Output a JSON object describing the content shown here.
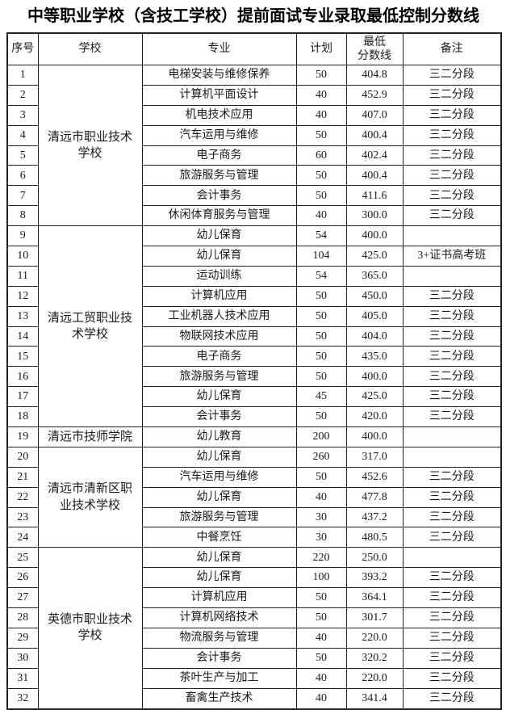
{
  "page": {
    "title": "中等职业学校（含技工学校）提前面试专业录取最低控制分数线"
  },
  "table": {
    "headers": {
      "no": "序号",
      "school": "学校",
      "major": "专业",
      "plan": "计划",
      "score": "最低\n分数线",
      "remark": "备注"
    },
    "groups": [
      {
        "school": "清远市职业技术学校",
        "rows": [
          {
            "no": "1",
            "major": "电梯安装与维修保养",
            "plan": "50",
            "score": "404.8",
            "remark": "三二分段"
          },
          {
            "no": "2",
            "major": "计算机平面设计",
            "plan": "40",
            "score": "452.9",
            "remark": "三二分段"
          },
          {
            "no": "3",
            "major": "机电技术应用",
            "plan": "40",
            "score": "407.0",
            "remark": "三二分段"
          },
          {
            "no": "4",
            "major": "汽车运用与维修",
            "plan": "50",
            "score": "400.4",
            "remark": "三二分段"
          },
          {
            "no": "5",
            "major": "电子商务",
            "plan": "60",
            "score": "402.4",
            "remark": "三二分段"
          },
          {
            "no": "6",
            "major": "旅游服务与管理",
            "plan": "50",
            "score": "400.4",
            "remark": "三二分段"
          },
          {
            "no": "7",
            "major": "会计事务",
            "plan": "50",
            "score": "411.6",
            "remark": "三二分段"
          },
          {
            "no": "8",
            "major": "休闲体育服务与管理",
            "plan": "40",
            "score": "300.0",
            "remark": "三二分段"
          }
        ]
      },
      {
        "school": "清远工贸职业技术学校",
        "rows": [
          {
            "no": "9",
            "major": "幼儿保育",
            "plan": "54",
            "score": "400.0",
            "remark": ""
          },
          {
            "no": "10",
            "major": "幼儿保育",
            "plan": "104",
            "score": "425.0",
            "remark": "3+证书高考班"
          },
          {
            "no": "11",
            "major": "运动训练",
            "plan": "54",
            "score": "365.0",
            "remark": ""
          },
          {
            "no": "12",
            "major": "计算机应用",
            "plan": "50",
            "score": "450.0",
            "remark": "三二分段"
          },
          {
            "no": "13",
            "major": "工业机器人技术应用",
            "plan": "50",
            "score": "405.0",
            "remark": "三二分段"
          },
          {
            "no": "14",
            "major": "物联网技术应用",
            "plan": "50",
            "score": "404.0",
            "remark": "三二分段"
          },
          {
            "no": "15",
            "major": "电子商务",
            "plan": "50",
            "score": "435.0",
            "remark": "三二分段"
          },
          {
            "no": "16",
            "major": "旅游服务与管理",
            "plan": "50",
            "score": "400.0",
            "remark": "三二分段"
          },
          {
            "no": "17",
            "major": "幼儿保育",
            "plan": "45",
            "score": "425.0",
            "remark": "三二分段"
          },
          {
            "no": "18",
            "major": "会计事务",
            "plan": "50",
            "score": "420.0",
            "remark": "三二分段"
          }
        ]
      },
      {
        "school": "清远市技师学院",
        "rows": [
          {
            "no": "19",
            "major": "幼儿教育",
            "plan": "200",
            "score": "400.0",
            "remark": ""
          }
        ]
      },
      {
        "school": "清远市清新区职业技术学校",
        "rows": [
          {
            "no": "20",
            "major": "幼儿保育",
            "plan": "260",
            "score": "317.0",
            "remark": ""
          },
          {
            "no": "21",
            "major": "汽车运用与维修",
            "plan": "50",
            "score": "452.6",
            "remark": "三二分段"
          },
          {
            "no": "22",
            "major": "幼儿保育",
            "plan": "40",
            "score": "477.8",
            "remark": "三二分段"
          },
          {
            "no": "23",
            "major": "旅游服务与管理",
            "plan": "30",
            "score": "437.2",
            "remark": "三二分段"
          },
          {
            "no": "24",
            "major": "中餐烹饪",
            "plan": "30",
            "score": "480.5",
            "remark": "三二分段"
          }
        ]
      },
      {
        "school": "英德市职业技术学校",
        "rows": [
          {
            "no": "25",
            "major": "幼儿保育",
            "plan": "220",
            "score": "250.0",
            "remark": ""
          },
          {
            "no": "26",
            "major": "幼儿保育",
            "plan": "100",
            "score": "393.2",
            "remark": "三二分段"
          },
          {
            "no": "27",
            "major": "计算机应用",
            "plan": "50",
            "score": "364.1",
            "remark": "三二分段"
          },
          {
            "no": "28",
            "major": "计算机网络技术",
            "plan": "50",
            "score": "301.7",
            "remark": "三二分段"
          },
          {
            "no": "29",
            "major": "物流服务与管理",
            "plan": "40",
            "score": "220.0",
            "remark": "三二分段"
          },
          {
            "no": "30",
            "major": "会计事务",
            "plan": "50",
            "score": "320.2",
            "remark": "三二分段"
          },
          {
            "no": "31",
            "major": "茶叶生产与加工",
            "plan": "40",
            "score": "220.0",
            "remark": "三二分段"
          },
          {
            "no": "32",
            "major": "畜禽生产技术",
            "plan": "40",
            "score": "341.4",
            "remark": "三二分段"
          }
        ]
      }
    ]
  }
}
